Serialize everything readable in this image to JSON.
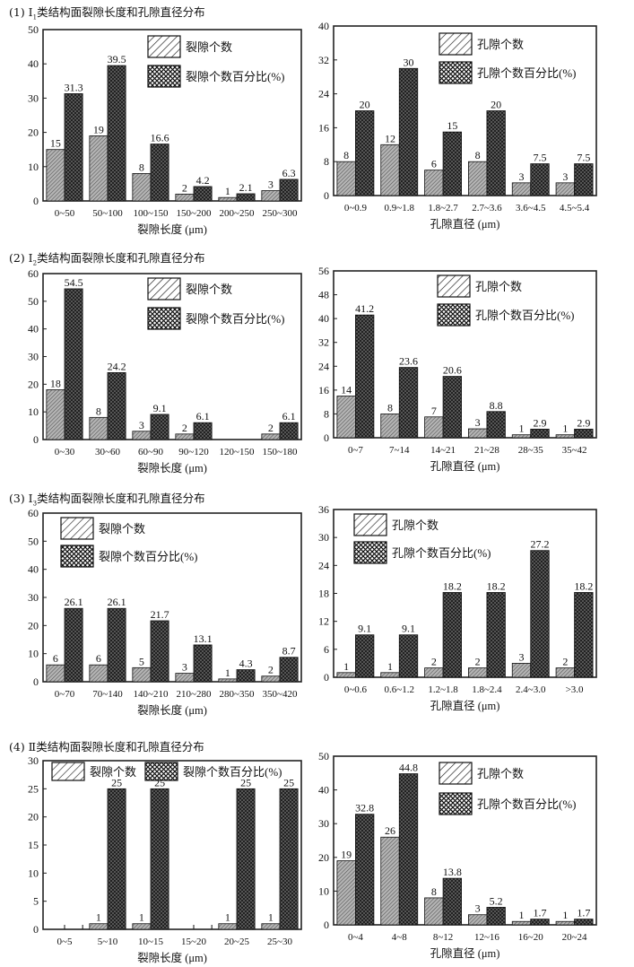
{
  "sections": [
    {
      "num": "(1) Ⅰ",
      "sub": "1",
      "rest": "类结构面裂隙长度和孔隙直径分布"
    },
    {
      "num": "(2) Ⅰ",
      "sub": "2",
      "rest": "类结构面裂隙长度和孔隙直径分布"
    },
    {
      "num": "(3) Ⅰ",
      "sub": "3",
      "rest": "类结构面裂隙长度和孔隙直径分布"
    },
    {
      "num": "(4) Ⅱ",
      "sub": "",
      "rest": "类结构面裂隙长度和孔隙直径分布"
    }
  ],
  "colors": {
    "count_fill": "#9a9a9a",
    "pct_fill": "#2a2a2a",
    "axis": "#222222"
  },
  "chart_data": [
    {
      "type": "bar",
      "title": "",
      "xlabel": "裂隙长度 (μm)",
      "ylabel": "",
      "ylim": [
        0,
        50
      ],
      "yticks": [
        0,
        10,
        20,
        30,
        40,
        50
      ],
      "legend": "top-right",
      "categories": [
        "0~50",
        "50~100",
        "100~150",
        "150~200",
        "200~250",
        "250~300"
      ],
      "series": [
        {
          "name": "裂隙个数",
          "values": [
            15,
            19,
            8,
            2,
            1,
            3
          ],
          "labels": [
            "15",
            "19",
            "8",
            "2",
            "1",
            "3"
          ]
        },
        {
          "name": "裂隙个数百分比(%)",
          "values": [
            31.3,
            39.5,
            16.6,
            4.2,
            2.1,
            6.3
          ],
          "labels": [
            "31.3",
            "39.5",
            "16.6",
            "4.2",
            "2.1",
            "6.3"
          ]
        }
      ]
    },
    {
      "type": "bar",
      "title": "",
      "xlabel": "孔隙直径 (μm)",
      "ylabel": "",
      "ylim": [
        0,
        40
      ],
      "yticks": [
        0,
        8,
        16,
        24,
        32,
        40
      ],
      "legend": "top-right",
      "categories": [
        "0~0.9",
        "0.9~1.8",
        "1.8~2.7",
        "2.7~3.6",
        "3.6~4.5",
        "4.5~5.4"
      ],
      "series": [
        {
          "name": "孔隙个数",
          "values": [
            8,
            12,
            6,
            8,
            3,
            3
          ],
          "labels": [
            "8",
            "12",
            "6",
            "8",
            "3",
            "3"
          ]
        },
        {
          "name": "孔隙个数百分比(%)",
          "values": [
            20,
            30,
            15,
            20,
            7.5,
            7.5
          ],
          "labels": [
            "20",
            "30",
            "15",
            "20",
            "7.5",
            "7.5"
          ]
        }
      ]
    },
    {
      "type": "bar",
      "title": "",
      "xlabel": "裂隙长度 (μm)",
      "ylabel": "",
      "ylim": [
        0,
        60
      ],
      "yticks": [
        0,
        10,
        20,
        30,
        40,
        50,
        60
      ],
      "legend": "top-right",
      "categories": [
        "0~30",
        "30~60",
        "60~90",
        "90~120",
        "120~150",
        "150~180"
      ],
      "series": [
        {
          "name": "裂隙个数",
          "values": [
            18,
            8,
            3,
            2,
            null,
            2
          ],
          "labels": [
            "18",
            "8",
            "3",
            "2",
            "",
            "2"
          ]
        },
        {
          "name": "裂隙个数百分比(%)",
          "values": [
            54.5,
            24.2,
            9.1,
            6.1,
            null,
            6.1
          ],
          "labels": [
            "54.5",
            "24.2",
            "9.1",
            "6.1",
            "",
            "6.1"
          ]
        }
      ]
    },
    {
      "type": "bar",
      "title": "",
      "xlabel": "孔隙直径 (μm)",
      "ylabel": "",
      "ylim": [
        0,
        56
      ],
      "yticks": [
        0,
        8,
        16,
        24,
        32,
        40,
        48,
        56
      ],
      "legend": "top-right",
      "categories": [
        "0~7",
        "7~14",
        "14~21",
        "21~28",
        "28~35",
        "35~42"
      ],
      "series": [
        {
          "name": "孔隙个数",
          "values": [
            14,
            8,
            7,
            3,
            1,
            1
          ],
          "labels": [
            "14",
            "8",
            "7",
            "3",
            "1",
            "1"
          ]
        },
        {
          "name": "孔隙个数百分比(%)",
          "values": [
            41.2,
            23.6,
            20.6,
            8.8,
            2.9,
            2.9
          ],
          "labels": [
            "41.2",
            "23.6",
            "20.6",
            "8.8",
            "2.9",
            "2.9"
          ]
        }
      ]
    },
    {
      "type": "bar",
      "title": "",
      "xlabel": "裂隙长度 (μm)",
      "ylabel": "",
      "ylim": [
        0,
        60
      ],
      "yticks": [
        0,
        10,
        20,
        30,
        40,
        50,
        60
      ],
      "legend": "top-left",
      "categories": [
        "0~70",
        "70~140",
        "140~210",
        "210~280",
        "280~350",
        "350~420"
      ],
      "series": [
        {
          "name": "裂隙个数",
          "values": [
            6,
            6,
            5,
            3,
            1,
            2
          ],
          "labels": [
            "6",
            "6",
            "5",
            "3",
            "1",
            "2"
          ]
        },
        {
          "name": "裂隙个数百分比(%)",
          "values": [
            26.1,
            26.1,
            21.7,
            13.1,
            4.3,
            8.7
          ],
          "labels": [
            "26.1",
            "26.1",
            "21.7",
            "13.1",
            "4.3",
            "8.7"
          ]
        }
      ]
    },
    {
      "type": "bar",
      "title": "",
      "xlabel": "孔隙直径 (μm)",
      "ylabel": "",
      "ylim": [
        0,
        36
      ],
      "yticks": [
        0,
        6,
        12,
        18,
        24,
        30,
        36
      ],
      "legend": "top-left",
      "categories": [
        "0~0.6",
        "0.6~1.2",
        "1.2~1.8",
        "1.8~2.4",
        "2.4~3.0",
        ">3.0"
      ],
      "series": [
        {
          "name": "孔隙个数",
          "values": [
            1,
            1,
            2,
            2,
            3,
            2
          ],
          "labels": [
            "1",
            "1",
            "2",
            "2",
            "3",
            "2"
          ]
        },
        {
          "name": "孔隙个数百分比(%)",
          "values": [
            9.1,
            9.1,
            18.2,
            18.2,
            27.2,
            18.2
          ],
          "labels": [
            "9.1",
            "9.1",
            "18.2",
            "18.2",
            "27.2",
            "18.2"
          ]
        }
      ]
    },
    {
      "type": "bar",
      "title": "",
      "xlabel": "裂隙长度 (μm)",
      "ylabel": "",
      "ylim": [
        0,
        30
      ],
      "yticks": [
        0,
        5,
        10,
        15,
        20,
        25,
        30
      ],
      "legend": "top",
      "categories": [
        "0~5",
        "5~10",
        "10~15",
        "15~20",
        "20~25",
        "25~30"
      ],
      "series": [
        {
          "name": "裂隙个数",
          "values": [
            0,
            1,
            1,
            0,
            1,
            1
          ],
          "labels": [
            "",
            "1",
            "1",
            "",
            "1",
            "1"
          ]
        },
        {
          "name": "裂隙个数百分比(%)",
          "values": [
            0,
            25,
            25,
            0,
            25,
            25
          ],
          "labels": [
            "",
            "25",
            "25",
            "",
            "25",
            "25"
          ]
        }
      ]
    },
    {
      "type": "bar",
      "title": "",
      "xlabel": "孔隙直径 (μm)",
      "ylabel": "",
      "ylim": [
        0,
        50
      ],
      "yticks": [
        0,
        10,
        20,
        30,
        40,
        50
      ],
      "legend": "top-right",
      "categories": [
        "0~4",
        "4~8",
        "8~12",
        "12~16",
        "16~20",
        "20~24"
      ],
      "series": [
        {
          "name": "孔隙个数",
          "values": [
            19,
            26,
            8,
            3,
            1,
            1
          ],
          "labels": [
            "19",
            "26",
            "8",
            "3",
            "1",
            "1"
          ]
        },
        {
          "name": "孔隙个数百分比(%)",
          "values": [
            32.8,
            44.8,
            13.8,
            5.2,
            1.7,
            1.7
          ],
          "labels": [
            "32.8",
            "44.8",
            "13.8",
            "5.2",
            "1.7",
            "1.7"
          ]
        }
      ]
    }
  ]
}
